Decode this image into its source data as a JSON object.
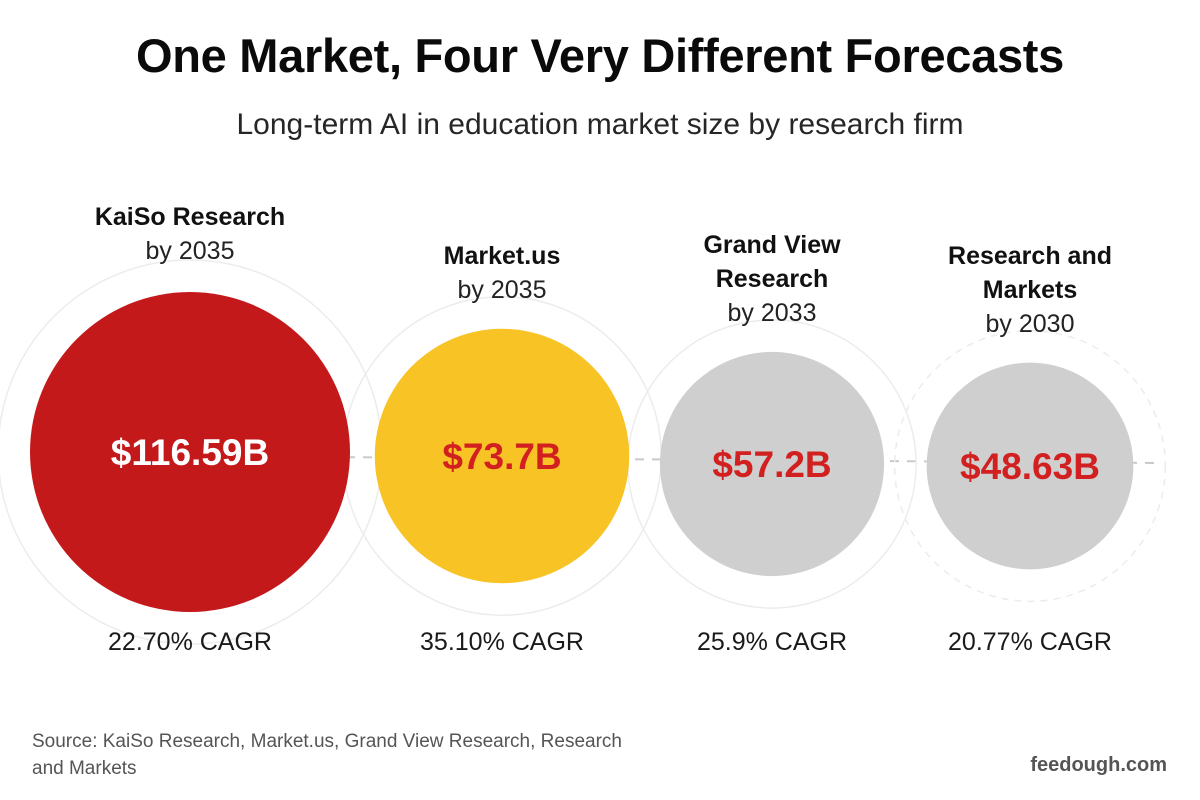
{
  "title": "One Market, Four Very Different Forecasts",
  "subtitle": "Long-term AI in education market size by research firm",
  "chart_data": {
    "type": "bubble",
    "size_unit": "USD billions",
    "firms": [
      {
        "name_lines": [
          "KaiSo Research"
        ],
        "year_label": "by 2035",
        "value": 116.59,
        "value_label": "$116.59B",
        "cagr_label": "22.70% CAGR",
        "fill": "#c4191b",
        "text_color": "#ffffff"
      },
      {
        "name_lines": [
          "Market.us"
        ],
        "year_label": "by 2035",
        "value": 73.7,
        "value_label": "$73.7B",
        "cagr_label": "35.10% CAGR",
        "fill": "#f7c325",
        "text_color": "#d21f1f"
      },
      {
        "name_lines": [
          "Grand View",
          "Research"
        ],
        "year_label": "by 2033",
        "value": 57.2,
        "value_label": "$57.2B",
        "cagr_label": "25.9% CAGR",
        "fill": "#cfcfcf",
        "text_color": "#d21f1f"
      },
      {
        "name_lines": [
          "Research and",
          "Markets"
        ],
        "year_label": "by 2030",
        "value": 48.63,
        "value_label": "$48.63B",
        "cagr_label": "20.77% CAGR",
        "fill": "#cfcfcf",
        "text_color": "#d21f1f"
      }
    ]
  },
  "source_note": "Source: KaiSo Research, Market.us, Grand View Research, Research and Markets",
  "brand": "feedough.com"
}
